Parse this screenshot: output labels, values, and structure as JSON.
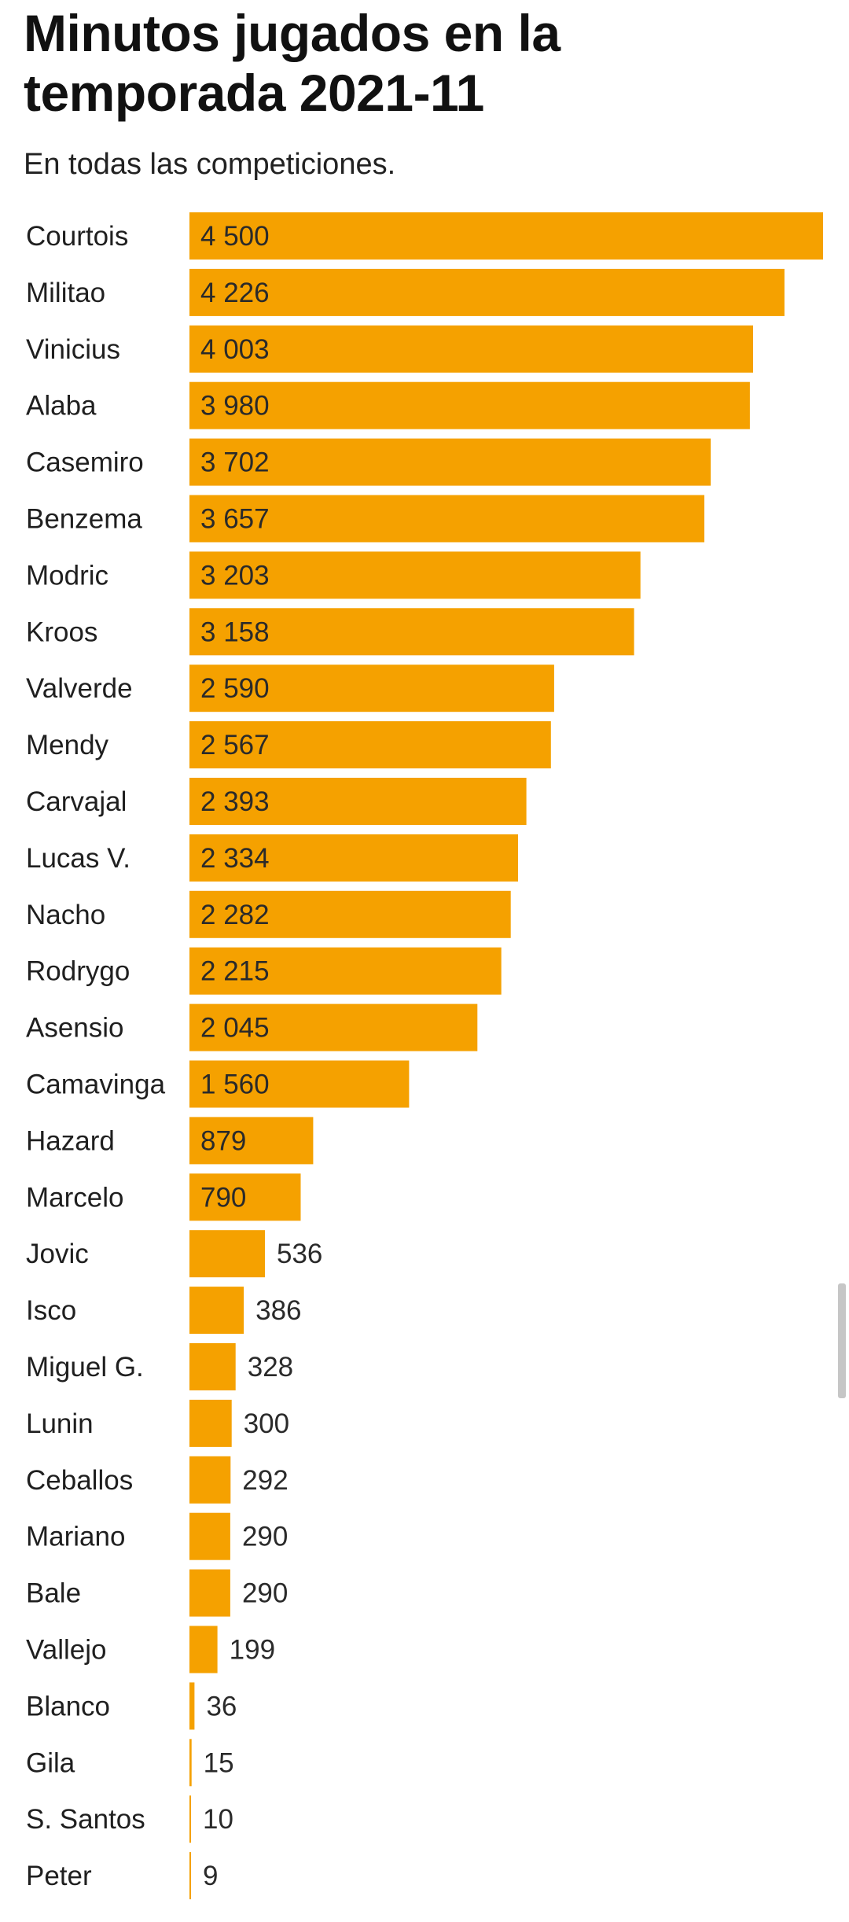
{
  "title": "Minutos jugados en la temporada 2021-11",
  "subtitle": "En todas las competiciones.",
  "colors": {
    "bar": "#F5A100",
    "text": "#1f1f1f"
  },
  "chart_data": {
    "type": "bar",
    "orientation": "horizontal",
    "title": "Minutos jugados en la temporada 2021-11",
    "subtitle": "En todas las competiciones.",
    "xlim": [
      0,
      4500
    ],
    "grid": false,
    "legend": "none",
    "categories": [
      "Courtois",
      "Militao",
      "Vinicius",
      "Alaba",
      "Casemiro",
      "Benzema",
      "Modric",
      "Kroos",
      "Valverde",
      "Mendy",
      "Carvajal",
      "Lucas V.",
      "Nacho",
      "Rodrygo",
      "Asensio",
      "Camavinga",
      "Hazard",
      "Marcelo",
      "Jovic",
      "Isco",
      "Miguel G.",
      "Lunin",
      "Ceballos",
      "Mariano",
      "Bale",
      "Vallejo",
      "Blanco",
      "Gila",
      "S. Santos",
      "Peter"
    ],
    "values": [
      4500,
      4226,
      4003,
      3980,
      3702,
      3657,
      3203,
      3158,
      2590,
      2567,
      2393,
      2334,
      2282,
      2215,
      2045,
      1560,
      879,
      790,
      536,
      386,
      328,
      300,
      292,
      290,
      290,
      199,
      36,
      15,
      10,
      9
    ],
    "value_labels": [
      "4 500",
      "4 226",
      "4 003",
      "3 980",
      "3 702",
      "3 657",
      "3 203",
      "3 158",
      "2 590",
      "2 567",
      "2 393",
      "2 334",
      "2 282",
      "2 215",
      "2 045",
      "1 560",
      "879",
      "790",
      "536",
      "386",
      "328",
      "300",
      "292",
      "290",
      "290",
      "199",
      "36",
      "15",
      "10",
      "9"
    ]
  }
}
